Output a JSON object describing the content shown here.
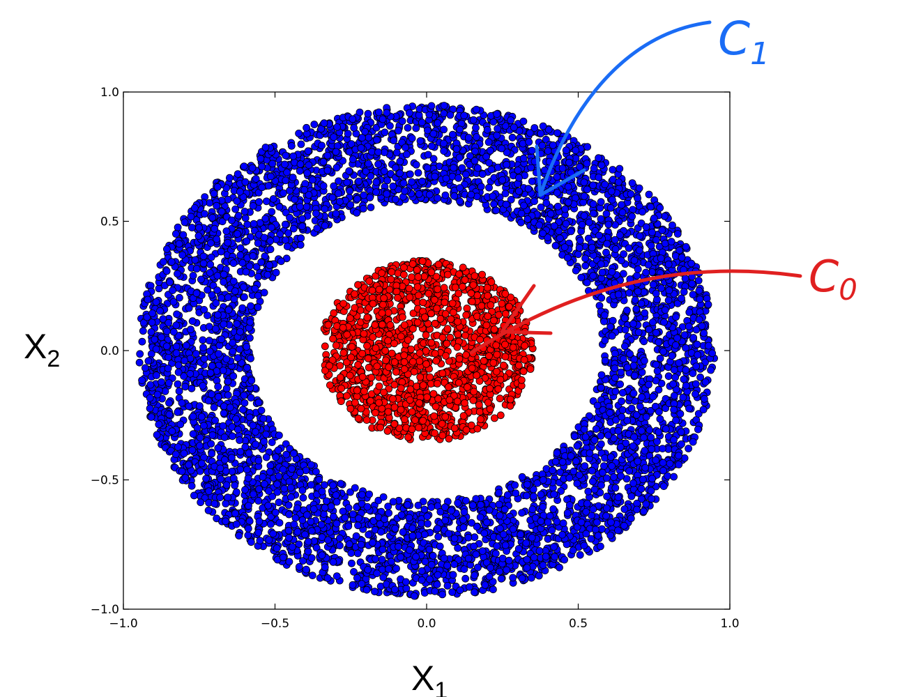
{
  "chart_data": {
    "type": "scatter",
    "title": "",
    "xlabel": "X",
    "xlabel_subscript": "1",
    "ylabel": "X",
    "ylabel_subscript": "2",
    "xlim": [
      -1.0,
      1.0
    ],
    "ylim": [
      -1.0,
      1.0
    ],
    "xticks": [
      -1.0,
      -0.5,
      0.0,
      0.5,
      1.0
    ],
    "yticks": [
      1.0,
      0.5,
      0.0,
      -0.5,
      -1.0
    ],
    "xtick_labels": [
      "−1.0",
      "−0.5",
      "0.0",
      "0.5",
      "1.0"
    ],
    "ytick_labels": [
      "1.0",
      "0.5",
      "0.0",
      "−0.5",
      "−1.0"
    ],
    "grid": false,
    "series": [
      {
        "name": "",
        "shape": "disk",
        "r_min": 0.0,
        "r_max": 0.35,
        "color": "#ff0000",
        "point_count_approx": 1400
      },
      {
        "name": "",
        "shape": "annulus",
        "r_min": 0.58,
        "r_max": 0.95,
        "color": "#0000ff",
        "point_count_approx": 5200
      }
    ],
    "annotations": [
      {
        "text": "C",
        "sub": "1",
        "color": "#1a6cf5",
        "points_to": "blue ring"
      },
      {
        "text": "C",
        "sub": "0",
        "color": "#e02020",
        "points_to": "red disk"
      }
    ]
  }
}
